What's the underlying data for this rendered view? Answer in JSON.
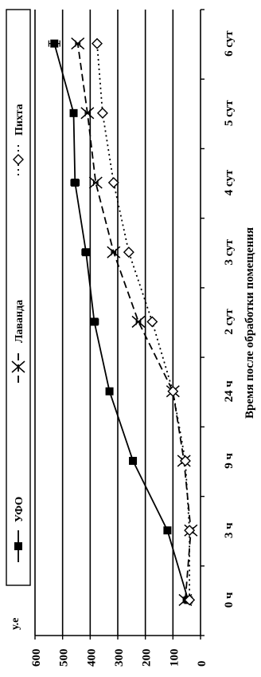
{
  "chart_data": {
    "type": "line",
    "orientation": "rotated",
    "xlabel": "Время после обработки помещения",
    "ylabel": "у.е",
    "categories": [
      "0 ч",
      "3 ч",
      "9 ч",
      "24 ч",
      "2 сут",
      "3 сут",
      "4 сут",
      "5 сут",
      "6 сут"
    ],
    "ylim": [
      0,
      600
    ],
    "yticks": [
      0,
      100,
      200,
      300,
      400,
      500,
      600
    ],
    "grid": true,
    "legend_position": "left",
    "series": [
      {
        "name": "УФО",
        "values": [
          45,
          120,
          245,
          330,
          385,
          415,
          455,
          460,
          530
        ],
        "errors": [
          15,
          10,
          12,
          12,
          15,
          15,
          15,
          10,
          20
        ],
        "color": "#000000",
        "marker": "square",
        "line": "solid"
      },
      {
        "name": "Лаванда",
        "values": [
          55,
          35,
          60,
          100,
          225,
          315,
          380,
          410,
          445
        ],
        "errors": [
          8,
          8,
          8,
          8,
          8,
          8,
          8,
          8,
          8
        ],
        "color": "#000000",
        "marker": "x",
        "line": "dashed"
      },
      {
        "name": "Пихта",
        "values": [
          40,
          40,
          55,
          100,
          175,
          260,
          315,
          355,
          375
        ],
        "errors": [
          6,
          6,
          6,
          6,
          8,
          8,
          8,
          8,
          8
        ],
        "color": "#000000",
        "marker": "diamond",
        "line": "dotted"
      }
    ]
  }
}
